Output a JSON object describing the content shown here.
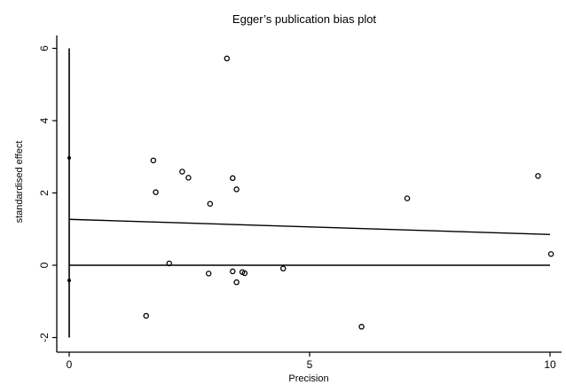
{
  "chart_data": {
    "type": "scatter",
    "title": "Egger’s publication bias plot",
    "xlabel": "Precision",
    "ylabel": "standardised effect",
    "xlim": [
      0,
      10
    ],
    "ylim": [
      -2,
      6
    ],
    "x_ticks": [
      0,
      5,
      10
    ],
    "y_ticks": [
      -2,
      0,
      2,
      4,
      6
    ],
    "x_tick_labels": [
      "0",
      "5",
      "10"
    ],
    "y_tick_labels": [
      "-2",
      "0",
      "2",
      "4",
      "6"
    ],
    "grid": false,
    "legend": "none",
    "colors": {
      "ink": "#000000",
      "background": "#ffffff"
    },
    "points": [
      {
        "x": 3.28,
        "y": 5.72
      },
      {
        "x": 1.75,
        "y": 2.9
      },
      {
        "x": 1.8,
        "y": 2.02
      },
      {
        "x": 2.35,
        "y": 2.59
      },
      {
        "x": 2.48,
        "y": 2.42
      },
      {
        "x": 3.4,
        "y": 2.41
      },
      {
        "x": 3.48,
        "y": 2.1
      },
      {
        "x": 2.93,
        "y": 1.7
      },
      {
        "x": 2.08,
        "y": 0.05
      },
      {
        "x": 2.9,
        "y": -0.23
      },
      {
        "x": 3.4,
        "y": -0.17
      },
      {
        "x": 3.6,
        "y": -0.19
      },
      {
        "x": 3.65,
        "y": -0.22
      },
      {
        "x": 3.48,
        "y": -0.47
      },
      {
        "x": 4.45,
        "y": -0.09
      },
      {
        "x": 1.6,
        "y": -1.4
      },
      {
        "x": 6.08,
        "y": -1.7
      },
      {
        "x": 7.03,
        "y": 1.85
      },
      {
        "x": 9.75,
        "y": 2.47
      },
      {
        "x": 10.02,
        "y": 0.31
      }
    ],
    "zero_precision_points": [
      {
        "x": 0,
        "y": 2.97
      },
      {
        "x": 0,
        "y": -0.42
      }
    ],
    "regression_line": {
      "x": [
        0,
        10
      ],
      "y": [
        1.27,
        0.85
      ]
    },
    "zero_line": {
      "y": 0
    },
    "ci_bar": {
      "x": 0,
      "y": [
        -2.0,
        6.0
      ]
    }
  }
}
